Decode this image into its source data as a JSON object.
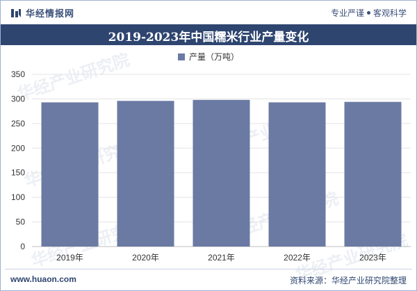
{
  "header": {
    "brand_name": "华经情报网",
    "tagline_left": "专业严谨",
    "tagline_right": "客观科学"
  },
  "chart_data": {
    "type": "bar",
    "title": "2019-2023年中国糯米行业产量变化",
    "categories": [
      "2019年",
      "2020年",
      "2021年",
      "2022年",
      "2023年"
    ],
    "series": [
      {
        "name": "产量（万吨）",
        "values": [
          293,
          296,
          298,
          293,
          294
        ]
      }
    ],
    "yticks": [
      "0",
      "50",
      "100",
      "150",
      "200",
      "250",
      "300",
      "350"
    ],
    "ylim": [
      0,
      350
    ],
    "xlabel": "",
    "ylabel": "",
    "legend": "top-center",
    "bar_color": "#6a7aa3"
  },
  "watermark": {
    "text_cn": "华经产业研究院",
    "text_url": "www.huaon.com"
  },
  "footer": {
    "url": "www.huaon.com",
    "source": "资料来源：华经产业研究院整理"
  },
  "colors": {
    "title_bg": "#2e4570",
    "bar": "#6a7aa3",
    "text_dark": "#3a4f7a"
  }
}
